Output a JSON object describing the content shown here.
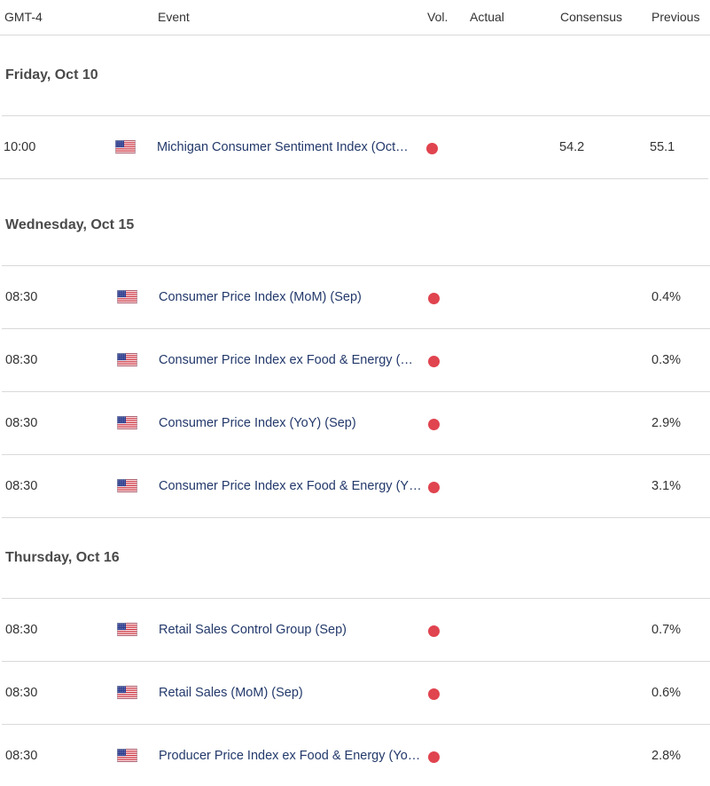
{
  "header": {
    "timezone": "GMT-4",
    "event": "Event",
    "vol": "Vol.",
    "actual": "Actual",
    "consensus": "Consensus",
    "previous": "Previous"
  },
  "colors": {
    "event_text": "#23396b",
    "volatility_dot": "#e0444f",
    "divider": "#d9d9d9"
  },
  "days": [
    {
      "label": "Friday, Oct 10",
      "events": [
        {
          "time": "10:00",
          "flag": "us-flag-icon",
          "event": "Michigan Consumer Sentiment Index (Oct…",
          "actual": "",
          "consensus": "54.2",
          "previous": "55.1"
        }
      ]
    },
    {
      "label": "Wednesday, Oct 15",
      "events": [
        {
          "time": "08:30",
          "flag": "us-flag-icon",
          "event": "Consumer Price Index (MoM) (Sep)",
          "actual": "",
          "consensus": "",
          "previous": "0.4%"
        },
        {
          "time": "08:30",
          "flag": "us-flag-icon",
          "event": "Consumer Price Index ex Food & Energy (…",
          "actual": "",
          "consensus": "",
          "previous": "0.3%"
        },
        {
          "time": "08:30",
          "flag": "us-flag-icon",
          "event": "Consumer Price Index (YoY) (Sep)",
          "actual": "",
          "consensus": "",
          "previous": "2.9%"
        },
        {
          "time": "08:30",
          "flag": "us-flag-icon",
          "event": "Consumer Price Index ex Food & Energy (Y…",
          "actual": "",
          "consensus": "",
          "previous": "3.1%"
        }
      ]
    },
    {
      "label": "Thursday, Oct 16",
      "events": [
        {
          "time": "08:30",
          "flag": "us-flag-icon",
          "event": "Retail Sales Control Group (Sep)",
          "actual": "",
          "consensus": "",
          "previous": "0.7%"
        },
        {
          "time": "08:30",
          "flag": "us-flag-icon",
          "event": "Retail Sales (MoM) (Sep)",
          "actual": "",
          "consensus": "",
          "previous": "0.6%"
        },
        {
          "time": "08:30",
          "flag": "us-flag-icon",
          "event": "Producer Price Index ex Food & Energy (Yo…",
          "actual": "",
          "consensus": "",
          "previous": "2.8%"
        }
      ]
    }
  ]
}
